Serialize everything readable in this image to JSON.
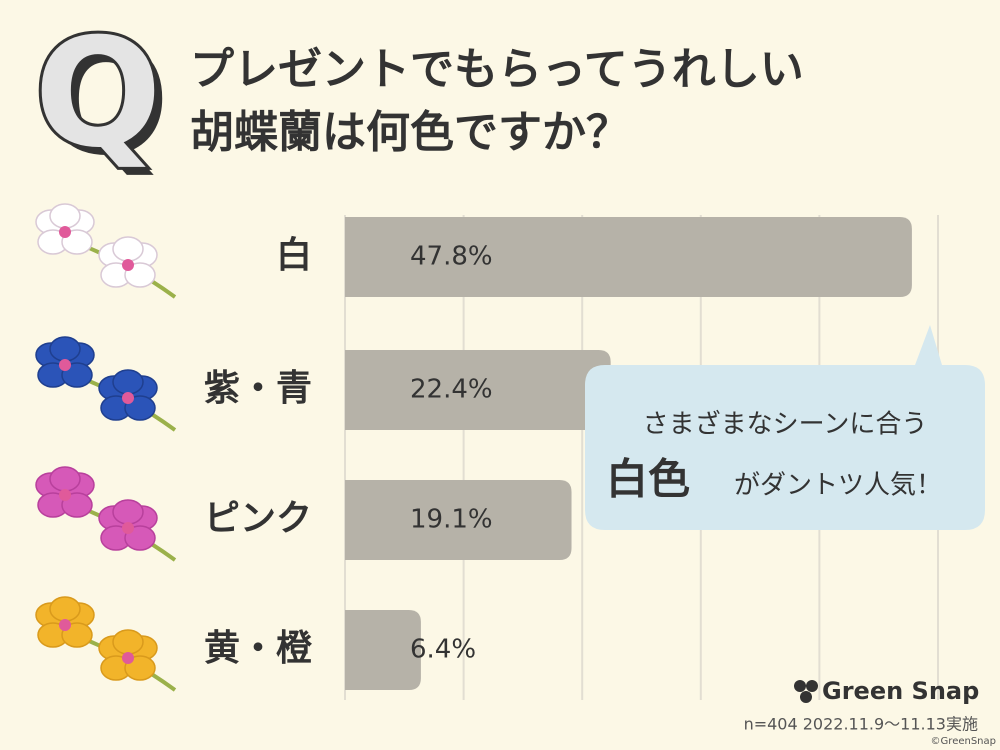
{
  "chart_data": {
    "type": "bar",
    "orientation": "horizontal",
    "question_mark": "Q",
    "title": [
      "プレゼントでもらってうれしい",
      "胡蝶蘭は何色ですか？"
    ],
    "categories": [
      "白",
      "紫・青",
      "ピンク",
      "黄・橙"
    ],
    "values": [
      47.8,
      22.4,
      19.1,
      6.4
    ],
    "value_labels": [
      "47.8%",
      "22.4%",
      "19.1%",
      "6.4%"
    ],
    "color": "#b6b2a8",
    "xlim": [
      0,
      50
    ],
    "xticks": [
      0,
      10,
      20,
      30,
      40,
      50
    ],
    "grid": true,
    "callout": {
      "line1": "さまざまなシーンに合う",
      "highlight": "白色",
      "line2": "がダントツ人気！"
    },
    "brand": "Green Snap",
    "note": "n=404  2022.11.9〜11.13実施",
    "copyright": "©GreenSnap"
  }
}
